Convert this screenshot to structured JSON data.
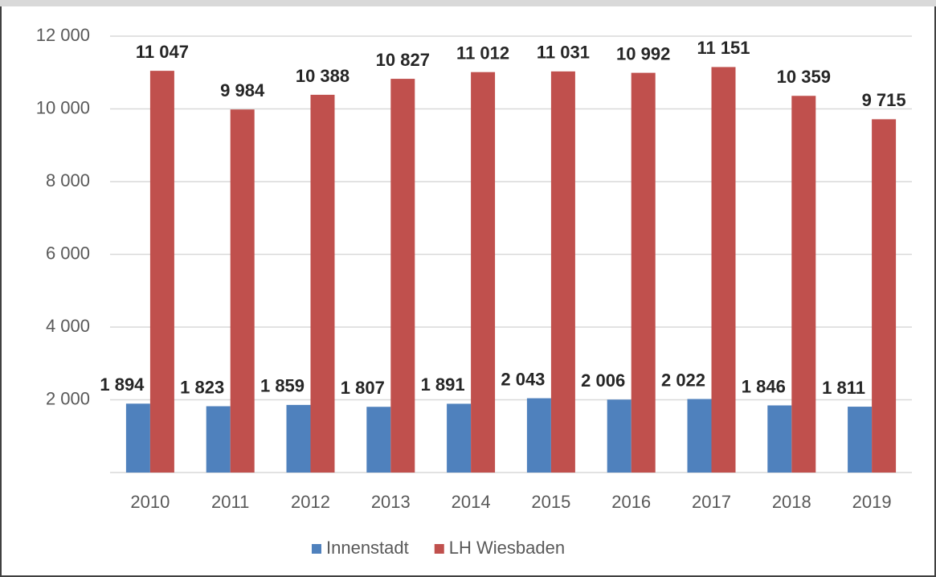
{
  "chart_data": {
    "type": "bar",
    "categories": [
      "2010",
      "2011",
      "2012",
      "2013",
      "2014",
      "2015",
      "2016",
      "2017",
      "2018",
      "2019"
    ],
    "series": [
      {
        "name": "Innenstadt",
        "color": "#4f81bd",
        "values": [
          1894,
          1823,
          1859,
          1807,
          1891,
          2043,
          2006,
          2022,
          1846,
          1811
        ],
        "value_labels": [
          "1 894",
          "1 823",
          "1 859",
          "1 807",
          "1 891",
          "2 043",
          "2 006",
          "2 022",
          "1 846",
          "1 811"
        ]
      },
      {
        "name": "LH Wiesbaden",
        "color": "#c0504d",
        "values": [
          11047,
          9984,
          10388,
          10827,
          11012,
          11031,
          10992,
          11151,
          10359,
          9715
        ],
        "value_labels": [
          "11 047",
          "9 984",
          "10 388",
          "10 827",
          "11 012",
          "11 031",
          "10 992",
          "11 151",
          "10 359",
          "9 715"
        ]
      }
    ],
    "ylim": [
      0,
      12000
    ],
    "yticks": [
      {
        "value": 2000,
        "label": "2 000"
      },
      {
        "value": 4000,
        "label": "4 000"
      },
      {
        "value": 6000,
        "label": "6 000"
      },
      {
        "value": 8000,
        "label": "8 000"
      },
      {
        "value": 10000,
        "label": "10 000"
      },
      {
        "value": 12000,
        "label": "12 000"
      }
    ],
    "grid": true,
    "legend": "bottom"
  }
}
